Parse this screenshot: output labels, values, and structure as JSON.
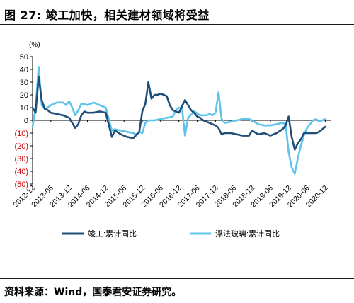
{
  "figure": {
    "number": "图 27:",
    "title": "竣工加快，相关建材领域将受益"
  },
  "source": "资料来源：Wind，国泰君安证券研究。",
  "chart_data": {
    "type": "line",
    "ylabel": "(%)",
    "ylim": [
      -50,
      50
    ],
    "yticks": [
      {
        "value": 50,
        "label": "50"
      },
      {
        "value": 40,
        "label": "40"
      },
      {
        "value": 30,
        "label": "30"
      },
      {
        "value": 20,
        "label": "20"
      },
      {
        "value": 10,
        "label": "10"
      },
      {
        "value": 0,
        "label": "0"
      },
      {
        "value": -10,
        "label": "(10)"
      },
      {
        "value": -20,
        "label": "(20)"
      },
      {
        "value": -30,
        "label": "(30)"
      },
      {
        "value": -40,
        "label": "(40)"
      },
      {
        "value": -50,
        "label": "(50)"
      }
    ],
    "negative_tick_color": "#cc0000",
    "xlim": [
      "2012-12",
      "2021-02"
    ],
    "xticks": [
      "2012-12",
      "2013-06",
      "2013-12",
      "2014-06",
      "2014-12",
      "2015-06",
      "2015-12",
      "2016-06",
      "2016-12",
      "2017-06",
      "2017-12",
      "2018-06",
      "2018-12",
      "2019-06",
      "2019-12",
      "2020-06",
      "2020-12"
    ],
    "grid": false,
    "legend": "bottom",
    "series": [
      {
        "name": "竣工:累计同比",
        "color": "#1f4e79",
        "points": [
          [
            "2012-12",
            10
          ],
          [
            "2013-01",
            6
          ],
          [
            "2013-02",
            34
          ],
          [
            "2013-03",
            16
          ],
          [
            "2013-04",
            9
          ],
          [
            "2013-05",
            8
          ],
          [
            "2013-06",
            6
          ],
          [
            "2013-08",
            5
          ],
          [
            "2013-10",
            4
          ],
          [
            "2013-12",
            2
          ],
          [
            "2014-02",
            -6
          ],
          [
            "2014-03",
            -3
          ],
          [
            "2014-04",
            4
          ],
          [
            "2014-05",
            7
          ],
          [
            "2014-06",
            6
          ],
          [
            "2014-08",
            6
          ],
          [
            "2014-10",
            7
          ],
          [
            "2014-12",
            6
          ],
          [
            "2015-02",
            -13
          ],
          [
            "2015-03",
            -8
          ],
          [
            "2015-05",
            -11
          ],
          [
            "2015-07",
            -13
          ],
          [
            "2015-09",
            -14
          ],
          [
            "2015-11",
            -9
          ],
          [
            "2015-12",
            7
          ],
          [
            "2016-01",
            13
          ],
          [
            "2016-02",
            30
          ],
          [
            "2016-03",
            17
          ],
          [
            "2016-04",
            20
          ],
          [
            "2016-05",
            20
          ],
          [
            "2016-06",
            21
          ],
          [
            "2016-07",
            20
          ],
          [
            "2016-08",
            19
          ],
          [
            "2016-09",
            12
          ],
          [
            "2016-10",
            8
          ],
          [
            "2016-11",
            7
          ],
          [
            "2016-12",
            6
          ],
          [
            "2017-02",
            16
          ],
          [
            "2017-03",
            12
          ],
          [
            "2017-04",
            8
          ],
          [
            "2017-05",
            6
          ],
          [
            "2017-06",
            3
          ],
          [
            "2017-07",
            2
          ],
          [
            "2017-08",
            0
          ],
          [
            "2017-09",
            -1
          ],
          [
            "2017-10",
            -2
          ],
          [
            "2017-11",
            -3
          ],
          [
            "2017-12",
            -4
          ],
          [
            "2018-01",
            -6
          ],
          [
            "2018-02",
            -11
          ],
          [
            "2018-03",
            -10
          ],
          [
            "2018-05",
            -10
          ],
          [
            "2018-07",
            -11
          ],
          [
            "2018-09",
            -12
          ],
          [
            "2018-11",
            -12
          ],
          [
            "2018-12",
            -8
          ],
          [
            "2019-02",
            -11
          ],
          [
            "2019-04",
            -10
          ],
          [
            "2019-06",
            -12
          ],
          [
            "2019-08",
            -10
          ],
          [
            "2019-10",
            -7
          ],
          [
            "2019-11",
            -4
          ],
          [
            "2019-12",
            3
          ],
          [
            "2020-01",
            -13
          ],
          [
            "2020-02",
            -23
          ],
          [
            "2020-03",
            -18
          ],
          [
            "2020-04",
            -15
          ],
          [
            "2020-05",
            -10
          ],
          [
            "2020-07",
            -10
          ],
          [
            "2020-09",
            -10
          ],
          [
            "2020-10",
            -9
          ],
          [
            "2020-11",
            -7
          ],
          [
            "2020-12",
            -5
          ]
        ]
      },
      {
        "name": "浮法玻璃:累计同比",
        "color": "#5ec4ec",
        "points": [
          [
            "2012-12",
            -5
          ],
          [
            "2013-01",
            10
          ],
          [
            "2013-02",
            42
          ],
          [
            "2013-03",
            12
          ],
          [
            "2013-04",
            9
          ],
          [
            "2013-05",
            10
          ],
          [
            "2013-06",
            12
          ],
          [
            "2013-08",
            14
          ],
          [
            "2013-10",
            14
          ],
          [
            "2013-11",
            12
          ],
          [
            "2013-12",
            15
          ],
          [
            "2014-01",
            10
          ],
          [
            "2014-02",
            4
          ],
          [
            "2014-03",
            8
          ],
          [
            "2014-04",
            13
          ],
          [
            "2014-05",
            13
          ],
          [
            "2014-06",
            12
          ],
          [
            "2014-08",
            14
          ],
          [
            "2014-10",
            12
          ],
          [
            "2014-12",
            10
          ],
          [
            "2015-01",
            1
          ],
          [
            "2015-02",
            -8
          ],
          [
            "2015-03",
            -7
          ],
          [
            "2015-05",
            -8
          ],
          [
            "2015-07",
            -9
          ],
          [
            "2015-09",
            -10
          ],
          [
            "2015-10",
            -11
          ],
          [
            "2015-11",
            -9
          ],
          [
            "2015-12",
            -10
          ],
          [
            "2016-01",
            -2
          ],
          [
            "2016-02",
            0
          ],
          [
            "2016-04",
            0
          ],
          [
            "2016-06",
            1
          ],
          [
            "2016-08",
            2
          ],
          [
            "2016-10",
            3
          ],
          [
            "2016-11",
            8
          ],
          [
            "2016-12",
            10
          ],
          [
            "2017-01",
            10
          ],
          [
            "2017-02",
            -12
          ],
          [
            "2017-03",
            2
          ],
          [
            "2017-05",
            7
          ],
          [
            "2017-07",
            4
          ],
          [
            "2017-09",
            4
          ],
          [
            "2017-10",
            5
          ],
          [
            "2017-11",
            4
          ],
          [
            "2017-12",
            6
          ],
          [
            "2018-01",
            22
          ],
          [
            "2018-02",
            1
          ],
          [
            "2018-03",
            -2
          ],
          [
            "2018-05",
            -1
          ],
          [
            "2018-07",
            0
          ],
          [
            "2018-09",
            1
          ],
          [
            "2018-11",
            1
          ],
          [
            "2018-12",
            0
          ],
          [
            "2019-02",
            -3
          ],
          [
            "2019-04",
            -4
          ],
          [
            "2019-06",
            -4
          ],
          [
            "2019-08",
            -3
          ],
          [
            "2019-10",
            -2
          ],
          [
            "2019-11",
            -3
          ],
          [
            "2019-12",
            -25
          ],
          [
            "2020-01",
            -37
          ],
          [
            "2020-02",
            -42
          ],
          [
            "2020-03",
            -30
          ],
          [
            "2020-04",
            -20
          ],
          [
            "2020-05",
            -12
          ],
          [
            "2020-06",
            -6
          ],
          [
            "2020-07",
            -3
          ],
          [
            "2020-08",
            0
          ],
          [
            "2020-09",
            1
          ],
          [
            "2020-10",
            -1
          ],
          [
            "2020-11",
            0
          ],
          [
            "2020-12",
            1
          ]
        ]
      }
    ]
  }
}
